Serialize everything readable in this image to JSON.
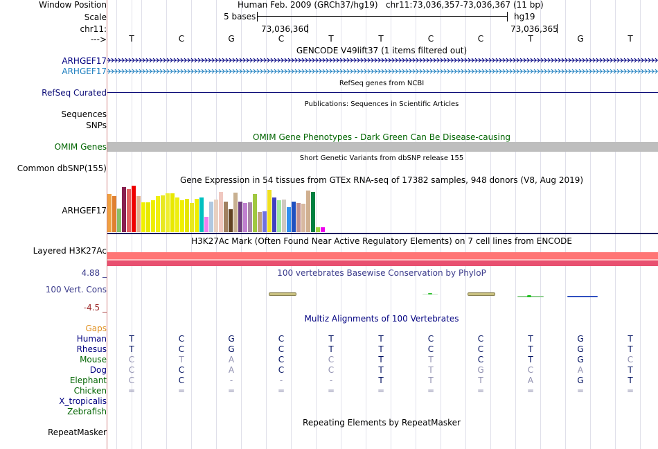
{
  "left_labels": {
    "window_position": "Window Position",
    "scale": "Scale",
    "chrom": "chr11:",
    "strand": "--->",
    "gencode_gene": "ARHGEF17",
    "gencode_gene2": "ARHGEF17",
    "refseq": "RefSeq Curated",
    "sequences": "Sequences",
    "snps": "SNPs",
    "omim": "OMIM Genes",
    "common_dbsnp": "Common dbSNP(155)",
    "gtex_gene": "ARHGEF17",
    "h3k27ac": "Layered H3K27Ac",
    "phylop_max": "4.88 _",
    "phylop_name": "100 Vert. Cons",
    "phylop_min": "-4.5 _",
    "gaps": "Gaps",
    "species": [
      "Human",
      "Rhesus",
      "Mouse",
      "Dog",
      "Elephant",
      "Chicken",
      "X_tropicalis",
      "Zebrafish"
    ],
    "repeatmasker": "RepeatMasker"
  },
  "header": {
    "assembly": "Human Feb. 2009 (GRCh37/hg19)",
    "position": "chr11:73,036,357-73,036,367 (11 bp)",
    "scale_label": "5 bases",
    "scale_db": "hg19",
    "coord1": "73,036,360",
    "coord2": "73,036,365"
  },
  "ruler_bases": [
    "T",
    "C",
    "G",
    "C",
    "T",
    "T",
    "C",
    "C",
    "T",
    "G",
    "T"
  ],
  "tracks": {
    "gencode": "GENCODE V49lift37 (1 items filtered out)",
    "refseq": "RefSeq genes from NCBI",
    "publications": "Publications: Sequences in Scientific Articles",
    "omim": "OMIM Gene Phenotypes - Dark Green Can Be Disease-causing",
    "dbsnp": "Short Genetic Variants from dbSNP release 155",
    "gtex": "Gene Expression in 54 tissues from GTEx RNA-seq of 17382 samples, 948 donors (V8, Aug 2019)",
    "h3k27ac": "H3K27Ac Mark (Often Found Near Active Regulatory Elements) on 7 cell lines from ENCODE",
    "conservation": "100 vertebrates Basewise Conservation by PhyloP",
    "multiz": "Multiz Alignments of 100 Vertebrates",
    "repeatmasker": "Repeating Elements by RepeatMasker"
  },
  "gtex_colors": [
    "#f0a040",
    "#e08030",
    "#88c068",
    "#882050",
    "#e06060",
    "#ee0000",
    "#e0b090",
    "#f0f000",
    "#e8e800",
    "#eeee00",
    "#f0ee10",
    "#e8e820",
    "#eeee30",
    "#e8e800",
    "#eeee10",
    "#f0f000",
    "#e6e600",
    "#e8e820",
    "#eeee00",
    "#00c0c0",
    "#ee80ee",
    "#b0c8e0",
    "#e8d0c0",
    "#f0c8c0",
    "#a08060",
    "#604020",
    "#c8b090",
    "#704080",
    "#c080d0",
    "#a888a8",
    "#a0c840",
    "#c0a080",
    "#7070e0",
    "#f0e020",
    "#4040c0",
    "#a0e8a0",
    "#d0c8c0",
    "#3090f0",
    "#2050c0",
    "#c09090",
    "#d8b8a0",
    "#d0b090",
    "#008040",
    "#a0d040",
    "#ee00ee"
  ],
  "gtex_values": [
    0.82,
    0.78,
    0.5,
    0.97,
    0.92,
    1.0,
    0.78,
    0.64,
    0.64,
    0.69,
    0.77,
    0.79,
    0.84,
    0.84,
    0.75,
    0.69,
    0.71,
    0.62,
    0.72,
    0.74,
    0.33,
    0.66,
    0.7,
    0.86,
    0.66,
    0.49,
    0.85,
    0.65,
    0.63,
    0.64,
    0.82,
    0.44,
    0.45,
    0.91,
    0.74,
    0.68,
    0.7,
    0.53,
    0.66,
    0.63,
    0.61,
    0.89,
    0.86,
    0.1,
    0.1
  ],
  "alignment": {
    "Human": {
      "bases": [
        "T",
        "C",
        "G",
        "C",
        "T",
        "T",
        "C",
        "C",
        "T",
        "G",
        "T"
      ],
      "colors": [
        "#001060",
        "#001060",
        "#001060",
        "#001060",
        "#001060",
        "#001060",
        "#001060",
        "#001060",
        "#001060",
        "#001060",
        "#001060"
      ]
    },
    "Rhesus": {
      "bases": [
        "T",
        "C",
        "G",
        "C",
        "T",
        "T",
        "C",
        "C",
        "T",
        "G",
        "T"
      ],
      "colors": [
        "#001060",
        "#001060",
        "#001060",
        "#001060",
        "#001060",
        "#001060",
        "#001060",
        "#001060",
        "#001060",
        "#001060",
        "#001060"
      ]
    },
    "Mouse": {
      "bases": [
        "C",
        "T",
        "A",
        "C",
        "C",
        "T",
        "T",
        "C",
        "T",
        "G",
        "C"
      ],
      "colors": [
        "#9090b0",
        "#9090b0",
        "#9090b0",
        "#001060",
        "#9090b0",
        "#001060",
        "#9090b0",
        "#001060",
        "#001060",
        "#001060",
        "#9090b0"
      ]
    },
    "Dog": {
      "bases": [
        "C",
        "C",
        "A",
        "C",
        "C",
        "T",
        "T",
        "G",
        "C",
        "A",
        "T"
      ],
      "colors": [
        "#9090b0",
        "#001060",
        "#9090b0",
        "#001060",
        "#9090b0",
        "#001060",
        "#9090b0",
        "#9090b0",
        "#9090b0",
        "#9090b0",
        "#001060"
      ]
    },
    "Elephant": {
      "bases": [
        "C",
        "C",
        "-",
        "-",
        "-",
        "T",
        "T",
        "T",
        "A",
        "G",
        "T"
      ],
      "colors": [
        "#9090b0",
        "#001060",
        "#9090b0",
        "#9090b0",
        "#9090b0",
        "#001060",
        "#9090b0",
        "#9090b0",
        "#9090b0",
        "#001060",
        "#001060"
      ]
    },
    "Chicken": {
      "bases": [
        "=",
        "=",
        "=",
        "=",
        "=",
        "=",
        "=",
        "=",
        "=",
        "=",
        "="
      ],
      "colors": [
        "#9090b0",
        "#9090b0",
        "#9090b0",
        "#9090b0",
        "#9090b0",
        "#9090b0",
        "#9090b0",
        "#9090b0",
        "#9090b0",
        "#9090b0",
        "#9090b0"
      ]
    }
  }
}
